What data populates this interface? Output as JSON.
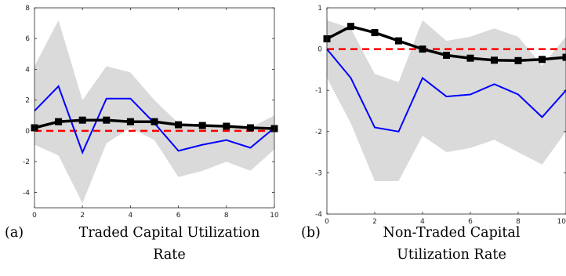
{
  "chart_data": [
    {
      "type": "line",
      "caption": {
        "tag": "(a)",
        "line1": "Traded Capital Utilization",
        "line2": "Rate"
      },
      "xlim": [
        0,
        10
      ],
      "ylim": [
        -5,
        8
      ],
      "xticks": [
        0,
        2,
        4,
        6,
        8,
        10
      ],
      "yticks": [
        -4,
        -2,
        0,
        2,
        4,
        6,
        8
      ],
      "band_upper": [
        4.2,
        7.2,
        2.0,
        4.2,
        3.8,
        2.0,
        0.5,
        0.4,
        0.3,
        0.2,
        1.0
      ],
      "band_lower": [
        -0.9,
        -1.6,
        -4.7,
        -0.8,
        0.2,
        -0.6,
        -3.0,
        -2.6,
        -2.0,
        -2.6,
        -1.2
      ],
      "blue": [
        1.3,
        2.9,
        -1.4,
        2.1,
        2.1,
        0.5,
        -1.3,
        -0.9,
        -0.6,
        -1.1,
        0.2
      ],
      "black": [
        0.2,
        0.6,
        0.7,
        0.7,
        0.6,
        0.6,
        0.4,
        0.35,
        0.3,
        0.2,
        0.15
      ],
      "reference": 0,
      "colors": {
        "band": "#dadada",
        "blue": "#0000ff",
        "black": "#000000",
        "reference": "#ff0000"
      }
    },
    {
      "type": "line",
      "caption": {
        "tag": "(b)",
        "line1": "Non-Traded Capital",
        "line2": "Utilization Rate"
      },
      "xlim": [
        0,
        10
      ],
      "ylim": [
        -4,
        1
      ],
      "xticks": [
        0,
        2,
        4,
        6,
        8,
        10
      ],
      "xtick_labels": [
        "0",
        "2",
        "4",
        "6",
        "8",
        "10"
      ],
      "yticks": [
        -4,
        -3,
        -2,
        -1,
        0,
        1
      ],
      "band_upper": [
        0.7,
        0.5,
        -0.6,
        -0.8,
        0.7,
        0.2,
        0.3,
        0.5,
        0.3,
        -0.4,
        0.3
      ],
      "band_lower": [
        -0.7,
        -1.8,
        -3.2,
        -3.2,
        -2.1,
        -2.5,
        -2.4,
        -2.2,
        -2.5,
        -2.8,
        -2.0
      ],
      "blue": [
        0.0,
        -0.7,
        -1.9,
        -2.0,
        -0.7,
        -1.15,
        -1.1,
        -0.85,
        -1.1,
        -1.65,
        -1.0
      ],
      "black": [
        0.25,
        0.55,
        0.4,
        0.2,
        0.0,
        -0.15,
        -0.22,
        -0.27,
        -0.28,
        -0.25,
        -0.2
      ],
      "reference": 0,
      "colors": {
        "band": "#dadada",
        "blue": "#0000ff",
        "black": "#000000",
        "reference": "#ff0000"
      }
    }
  ]
}
